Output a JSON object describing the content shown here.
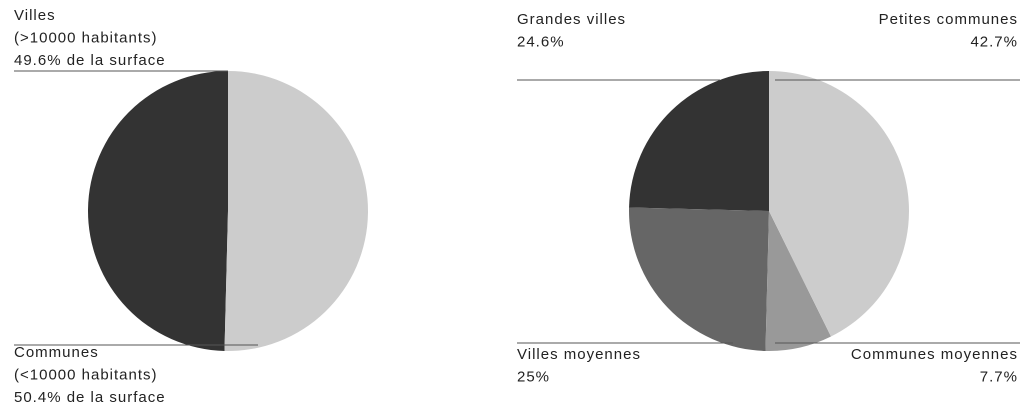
{
  "chart_data": [
    {
      "type": "pie",
      "categories": [
        "Villes",
        "Communes"
      ],
      "category_notes": [
        "(>10000 habitants)",
        "(<10000 habitants)"
      ],
      "values": [
        49.6,
        50.4
      ],
      "value_labels": [
        "49.6% de la surface",
        "50.4% de la surface"
      ],
      "colors": [
        "#333333",
        "#cccccc"
      ]
    },
    {
      "type": "pie",
      "categories": [
        "Petites communes",
        "Communes moyennes",
        "Villes moyennes",
        "Grandes villes"
      ],
      "values": [
        42.7,
        7.7,
        25,
        24.6
      ],
      "value_labels": [
        "42.7%",
        "7.7%",
        "25%",
        "24.6%"
      ],
      "colors": [
        "#cccccc",
        "#999999",
        "#666666",
        "#333333"
      ]
    }
  ]
}
